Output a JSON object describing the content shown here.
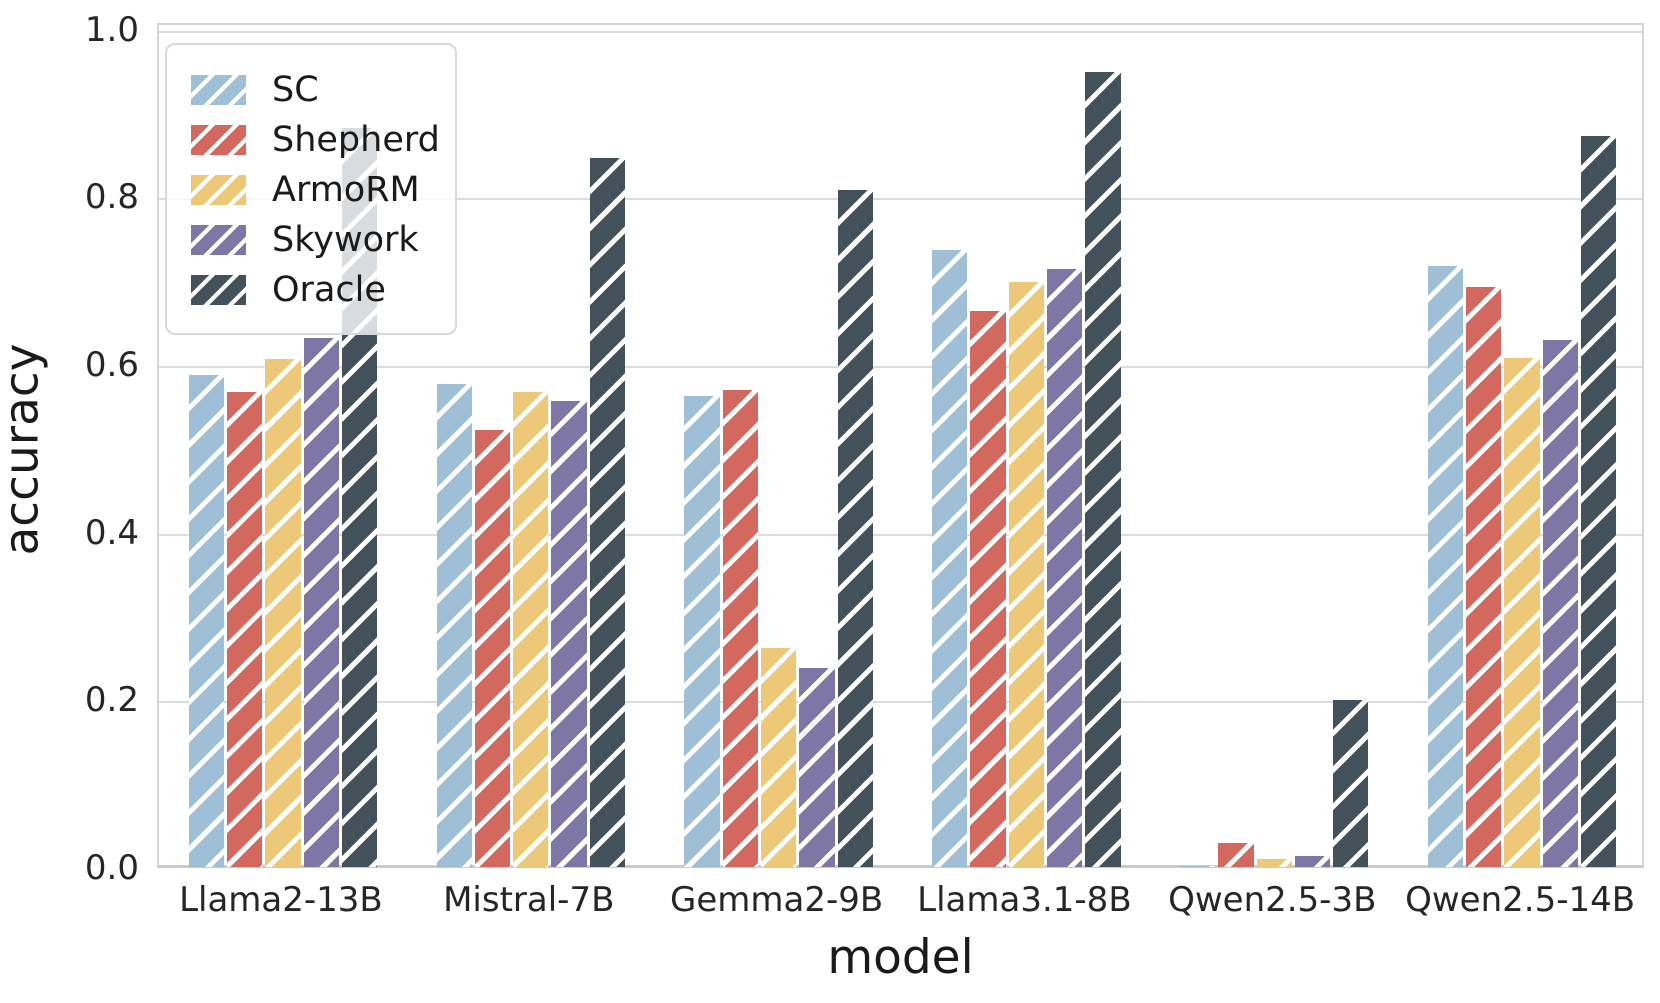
{
  "chart_data": {
    "type": "bar",
    "title": "",
    "xlabel": "model",
    "ylabel": "accuracy",
    "categories": [
      "Llama2-13B",
      "Mistral-7B",
      "Gemma2-9B",
      "Llama3.1-8B",
      "Qwen2.5-3B",
      "Qwen2.5-14B"
    ],
    "series": [
      {
        "name": "SC",
        "color": "#9EBFD5",
        "values": [
          0.59,
          0.58,
          0.565,
          0.74,
          0.005,
          0.721
        ]
      },
      {
        "name": "Shepherd",
        "color": "#D3685E",
        "values": [
          0.57,
          0.525,
          0.572,
          0.667,
          0.032,
          0.695
        ]
      },
      {
        "name": "ArmoRM",
        "color": "#EDC878",
        "values": [
          0.61,
          0.57,
          0.265,
          0.701,
          0.013,
          0.611
        ]
      },
      {
        "name": "Skywork",
        "color": "#7E76A5",
        "values": [
          0.635,
          0.56,
          0.241,
          0.717,
          0.017,
          0.632
        ]
      },
      {
        "name": "Oracle",
        "color": "#43515B",
        "values": [
          0.885,
          0.849,
          0.811,
          0.952,
          0.203,
          0.875
        ]
      }
    ],
    "yticks": [
      0.0,
      0.2,
      0.4,
      0.6,
      0.8,
      1.0
    ],
    "ytick_labels": [
      "0.0",
      "0.2",
      "0.4",
      "0.6",
      "0.8",
      "1.0"
    ],
    "ylim": [
      0.0,
      1.0
    ],
    "grid": true,
    "hatch": "/",
    "hatch_color": "#ffffff",
    "legend_position": "upper left",
    "axis_color": "#d5d5d5",
    "grid_color": "#dcdcdc",
    "text_color": "#262626"
  }
}
